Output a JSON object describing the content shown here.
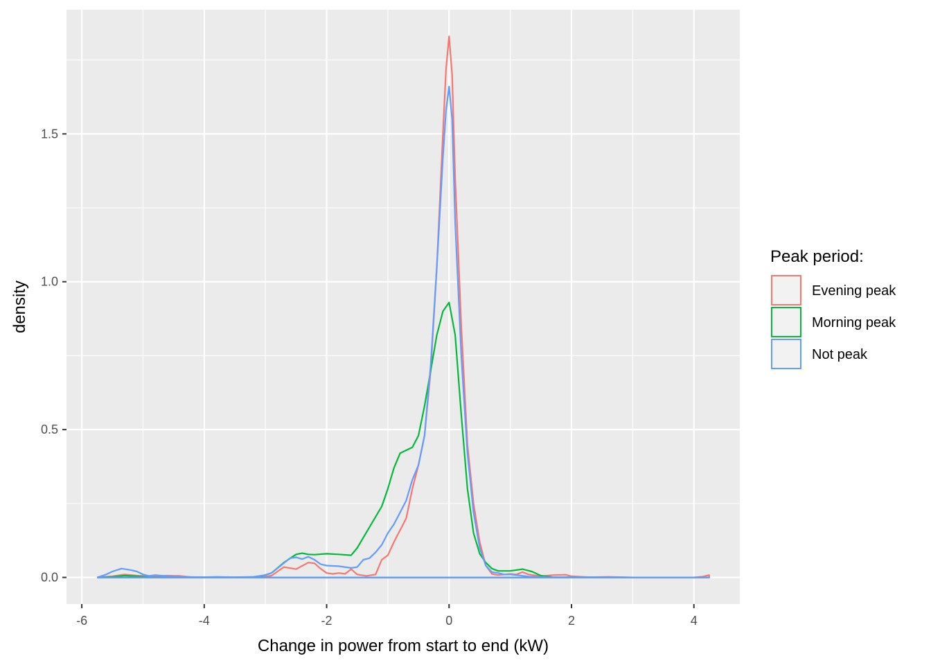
{
  "chart_data": {
    "type": "line",
    "title": "",
    "xlabel": "Change in power from start to end (kW)",
    "ylabel": "density",
    "xlim": [
      -6.25,
      4.75
    ],
    "ylim": [
      -0.09,
      1.92
    ],
    "x_ticks": [
      -6,
      -4,
      -2,
      0,
      2,
      4
    ],
    "x_tick_labels": [
      "-6",
      "-4",
      "-2",
      "0",
      "2",
      "4"
    ],
    "y_ticks": [
      0,
      0.5,
      1,
      1.5
    ],
    "y_tick_labels": [
      "0.0",
      "0.5",
      "1.0",
      "1.5"
    ],
    "grid": true,
    "legend": {
      "title": "Peak period:",
      "position": "right"
    },
    "series": [
      {
        "name": "Evening peak",
        "color": "#F8766D",
        "points": [
          [
            -5.75,
            0
          ],
          [
            -5.5,
            0.004
          ],
          [
            -5.3,
            0.01
          ],
          [
            -5.1,
            0.006
          ],
          [
            -4.9,
            0.004
          ],
          [
            -4.6,
            0.006
          ],
          [
            -4.4,
            0.005
          ],
          [
            -4.2,
            0.001
          ],
          [
            -3.8,
            0
          ],
          [
            -3.2,
            0.001
          ],
          [
            -3.0,
            0.003
          ],
          [
            -2.9,
            0.006
          ],
          [
            -2.7,
            0.035
          ],
          [
            -2.5,
            0.028
          ],
          [
            -2.3,
            0.05
          ],
          [
            -2.2,
            0.048
          ],
          [
            -2.1,
            0.03
          ],
          [
            -2.0,
            0.015
          ],
          [
            -1.9,
            0.012
          ],
          [
            -1.8,
            0.015
          ],
          [
            -1.7,
            0.012
          ],
          [
            -1.6,
            0.028
          ],
          [
            -1.5,
            0.01
          ],
          [
            -1.35,
            0.005
          ],
          [
            -1.2,
            0.01
          ],
          [
            -1.1,
            0.06
          ],
          [
            -1.0,
            0.075
          ],
          [
            -0.9,
            0.12
          ],
          [
            -0.8,
            0.16
          ],
          [
            -0.7,
            0.2
          ],
          [
            -0.6,
            0.3
          ],
          [
            -0.5,
            0.38
          ],
          [
            -0.4,
            0.48
          ],
          [
            -0.3,
            0.7
          ],
          [
            -0.2,
            1.05
          ],
          [
            -0.1,
            1.5
          ],
          [
            -0.05,
            1.72
          ],
          [
            0,
            1.83
          ],
          [
            0.05,
            1.7
          ],
          [
            0.1,
            1.35
          ],
          [
            0.2,
            0.85
          ],
          [
            0.3,
            0.45
          ],
          [
            0.4,
            0.25
          ],
          [
            0.5,
            0.12
          ],
          [
            0.6,
            0.04
          ],
          [
            0.7,
            0.012
          ],
          [
            0.8,
            0.008
          ],
          [
            0.9,
            0.01
          ],
          [
            1.0,
            0.012
          ],
          [
            1.1,
            0.01
          ],
          [
            1.2,
            0.018
          ],
          [
            1.3,
            0.01
          ],
          [
            1.5,
            0.004
          ],
          [
            1.7,
            0.008
          ],
          [
            1.9,
            0.009
          ],
          [
            2.0,
            0.004
          ],
          [
            2.3,
            0.001
          ],
          [
            2.6,
            0.002
          ],
          [
            3.0,
            0
          ],
          [
            3.5,
            0
          ],
          [
            4.0,
            0
          ],
          [
            4.15,
            0.003
          ],
          [
            4.25,
            0.008
          ],
          [
            4.25,
            0
          ],
          [
            -5.75,
            0
          ]
        ]
      },
      {
        "name": "Morning peak",
        "color": "#00BA38",
        "points": [
          [
            -5.75,
            0
          ],
          [
            -5.5,
            0.002
          ],
          [
            -5.3,
            0.006
          ],
          [
            -5.1,
            0.004
          ],
          [
            -4.9,
            0.001
          ],
          [
            -4.5,
            0
          ],
          [
            -3.5,
            0
          ],
          [
            -3.1,
            0.002
          ],
          [
            -2.9,
            0.015
          ],
          [
            -2.7,
            0.05
          ],
          [
            -2.5,
            0.078
          ],
          [
            -2.4,
            0.082
          ],
          [
            -2.3,
            0.078
          ],
          [
            -2.2,
            0.077
          ],
          [
            -2.0,
            0.08
          ],
          [
            -1.8,
            0.078
          ],
          [
            -1.6,
            0.075
          ],
          [
            -1.5,
            0.1
          ],
          [
            -1.3,
            0.17
          ],
          [
            -1.1,
            0.24
          ],
          [
            -1.0,
            0.3
          ],
          [
            -0.9,
            0.37
          ],
          [
            -0.8,
            0.42
          ],
          [
            -0.7,
            0.43
          ],
          [
            -0.6,
            0.44
          ],
          [
            -0.5,
            0.48
          ],
          [
            -0.4,
            0.58
          ],
          [
            -0.3,
            0.7
          ],
          [
            -0.2,
            0.82
          ],
          [
            -0.1,
            0.9
          ],
          [
            0,
            0.93
          ],
          [
            0.1,
            0.82
          ],
          [
            0.2,
            0.55
          ],
          [
            0.3,
            0.3
          ],
          [
            0.4,
            0.15
          ],
          [
            0.5,
            0.08
          ],
          [
            0.6,
            0.05
          ],
          [
            0.7,
            0.03
          ],
          [
            0.8,
            0.022
          ],
          [
            1.0,
            0.022
          ],
          [
            1.2,
            0.028
          ],
          [
            1.35,
            0.02
          ],
          [
            1.5,
            0.006
          ],
          [
            1.7,
            0.001
          ],
          [
            2.0,
            0
          ],
          [
            3.0,
            0
          ],
          [
            4.25,
            0
          ],
          [
            -5.75,
            0
          ]
        ]
      },
      {
        "name": "Not peak",
        "color": "#619CFF",
        "points": [
          [
            -5.75,
            0
          ],
          [
            -5.6,
            0.01
          ],
          [
            -5.5,
            0.02
          ],
          [
            -5.35,
            0.03
          ],
          [
            -5.2,
            0.025
          ],
          [
            -5.1,
            0.02
          ],
          [
            -5.0,
            0.01
          ],
          [
            -4.9,
            0.005
          ],
          [
            -4.8,
            0.008
          ],
          [
            -4.6,
            0.004
          ],
          [
            -4.4,
            0.002
          ],
          [
            -4.0,
            0.001
          ],
          [
            -3.8,
            0.002
          ],
          [
            -3.5,
            0.001
          ],
          [
            -3.2,
            0.002
          ],
          [
            -3.0,
            0.008
          ],
          [
            -2.9,
            0.015
          ],
          [
            -2.75,
            0.04
          ],
          [
            -2.6,
            0.065
          ],
          [
            -2.5,
            0.068
          ],
          [
            -2.4,
            0.062
          ],
          [
            -2.3,
            0.07
          ],
          [
            -2.2,
            0.06
          ],
          [
            -2.1,
            0.045
          ],
          [
            -2.0,
            0.04
          ],
          [
            -1.8,
            0.038
          ],
          [
            -1.6,
            0.032
          ],
          [
            -1.5,
            0.035
          ],
          [
            -1.4,
            0.06
          ],
          [
            -1.3,
            0.065
          ],
          [
            -1.2,
            0.085
          ],
          [
            -1.1,
            0.11
          ],
          [
            -1.0,
            0.15
          ],
          [
            -0.9,
            0.18
          ],
          [
            -0.8,
            0.22
          ],
          [
            -0.7,
            0.26
          ],
          [
            -0.6,
            0.33
          ],
          [
            -0.5,
            0.38
          ],
          [
            -0.4,
            0.48
          ],
          [
            -0.3,
            0.72
          ],
          [
            -0.2,
            1.05
          ],
          [
            -0.1,
            1.42
          ],
          [
            -0.05,
            1.58
          ],
          [
            0,
            1.66
          ],
          [
            0.05,
            1.55
          ],
          [
            0.1,
            1.2
          ],
          [
            0.2,
            0.75
          ],
          [
            0.3,
            0.42
          ],
          [
            0.4,
            0.22
          ],
          [
            0.5,
            0.1
          ],
          [
            0.6,
            0.04
          ],
          [
            0.7,
            0.018
          ],
          [
            0.8,
            0.015
          ],
          [
            0.9,
            0.01
          ],
          [
            1.0,
            0.01
          ],
          [
            1.1,
            0.008
          ],
          [
            1.3,
            0.003
          ],
          [
            1.6,
            0.001
          ],
          [
            2.0,
            0.001
          ],
          [
            2.6,
            0.001
          ],
          [
            3.0,
            0
          ],
          [
            4.25,
            0
          ],
          [
            -5.75,
            0
          ]
        ]
      }
    ]
  }
}
